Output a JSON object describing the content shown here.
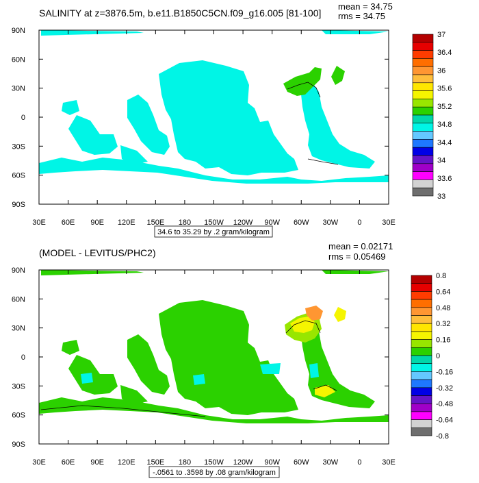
{
  "chart_data": [
    {
      "type": "heatmap",
      "title": "SALINITY at z=3876.5m, b.e11.B1850C5CN.f09_g16.005 [81-100]",
      "stats": {
        "mean": "mean = 34.75",
        "rms": "rms = 34.75"
      },
      "xticks": [
        "30E",
        "60E",
        "90E",
        "120E",
        "150E",
        "180",
        "150W",
        "120W",
        "90W",
        "60W",
        "30W",
        "0",
        "30E"
      ],
      "yticks": [
        "90N",
        "60N",
        "30N",
        "0",
        "30S",
        "60S",
        "90S"
      ],
      "contour_label": "34.6 to 35.29 by .2 gram/kilogram",
      "colorbar": {
        "labels": [
          "37",
          "36.4",
          "36",
          "35.6",
          "35.2",
          "34.8",
          "34.4",
          "34",
          "33.6",
          "33"
        ],
        "colors": [
          "#b40000",
          "#e60000",
          "#ff3c00",
          "#ff6e00",
          "#ff9632",
          "#ffbe3c",
          "#ffe600",
          "#f5f500",
          "#98e600",
          "#2bd100",
          "#00d7aa",
          "#00f5e6",
          "#64c8ff",
          "#1e78ff",
          "#0000e6",
          "#6414c8",
          "#a000c8",
          "#ff00ff",
          "#d2d2d2",
          "#6e6e6e"
        ]
      }
    },
    {
      "type": "heatmap",
      "title": "(MODEL - LEVITUS/PHC2)",
      "stats": {
        "mean": "mean = 0.02171",
        "rms": "rms = 0.05469"
      },
      "xticks": [
        "30E",
        "60E",
        "90E",
        "120E",
        "150E",
        "180",
        "150W",
        "120W",
        "90W",
        "60W",
        "30W",
        "0",
        "30E"
      ],
      "yticks": [
        "90N",
        "60N",
        "30N",
        "0",
        "30S",
        "60S",
        "90S"
      ],
      "contour_label": "-.0561 to .3598 by .08 gram/kilogram",
      "colorbar": {
        "labels": [
          "0.8",
          "0.64",
          "0.48",
          "0.32",
          "0.16",
          "0",
          "-0.16",
          "-0.32",
          "-0.48",
          "-0.64",
          "-0.8"
        ],
        "colors": [
          "#b40000",
          "#e60000",
          "#ff3c00",
          "#ff6e00",
          "#ff9632",
          "#ffbe3c",
          "#ffe600",
          "#f5f500",
          "#98e600",
          "#2bd100",
          "#00d7aa",
          "#00f5e6",
          "#64c8ff",
          "#1e78ff",
          "#0000e6",
          "#6414c8",
          "#a000c8",
          "#ff00ff",
          "#d2d2d2",
          "#6e6e6e"
        ]
      }
    }
  ]
}
